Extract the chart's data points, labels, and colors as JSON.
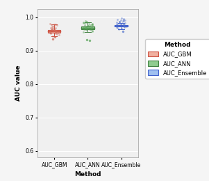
{
  "title": "",
  "xlabel": "Method",
  "ylabel": "AUC value",
  "plot_bg_color": "#f0f0f0",
  "fig_bg_color": "#f5f5f5",
  "grid_color": "#ffffff",
  "ylim": [
    0.58,
    1.025
  ],
  "yticks": [
    0.6,
    0.7,
    0.8,
    0.9,
    1.0
  ],
  "categories": [
    "AUC_GBM",
    "AUC_ANN",
    "AUC_Ensemble"
  ],
  "box_colors": [
    "#f0b0a0",
    "#90cc90",
    "#a0c0f0"
  ],
  "box_edge_colors": [
    "#cc5040",
    "#40904030",
    "#4060cc"
  ],
  "box_edge_colors2": [
    "#cc5040",
    "#408040",
    "#4060cc"
  ],
  "median_colors": [
    "#cc5040",
    "#408040",
    "#4060cc"
  ],
  "jitter_colors": [
    "#cc6050",
    "#50a050",
    "#5070cc"
  ],
  "gbm": {
    "q1": 0.9535,
    "median": 0.959,
    "q3": 0.9625,
    "whisker_low": 0.9445,
    "whisker_high": 0.979,
    "outliers_low": [
      0.9405,
      0.9355
    ],
    "outliers_high": [],
    "jitter_points": [
      0.944,
      0.947,
      0.949,
      0.951,
      0.952,
      0.953,
      0.954,
      0.955,
      0.956,
      0.957,
      0.958,
      0.959,
      0.96,
      0.961,
      0.962,
      0.963,
      0.964,
      0.965,
      0.966,
      0.967,
      0.968,
      0.969,
      0.97,
      0.972,
      0.974,
      0.976,
      0.978,
      0.979,
      0.98,
      0.981
    ]
  },
  "ann": {
    "q1": 0.9655,
    "median": 0.9695,
    "q3": 0.973,
    "whisker_low": 0.9565,
    "whisker_high": 0.9855,
    "outliers_low": [
      0.9305,
      0.9325
    ],
    "outliers_high": [],
    "jitter_points": [
      0.956,
      0.958,
      0.96,
      0.962,
      0.963,
      0.964,
      0.965,
      0.966,
      0.967,
      0.968,
      0.969,
      0.97,
      0.971,
      0.972,
      0.973,
      0.974,
      0.975,
      0.976,
      0.977,
      0.978,
      0.979,
      0.98,
      0.981,
      0.982,
      0.983,
      0.984,
      0.985,
      0.986,
      0.988,
      0.99
    ]
  },
  "ensemble": {
    "q1": 0.972,
    "median": 0.9745,
    "q3": 0.9765,
    "whisker_low": 0.9645,
    "whisker_high": 0.984,
    "outliers_low": [
      0.9585
    ],
    "outliers_high": [],
    "jitter_points": [
      0.964,
      0.966,
      0.968,
      0.97,
      0.971,
      0.972,
      0.973,
      0.974,
      0.975,
      0.976,
      0.977,
      0.978,
      0.979,
      0.98,
      0.981,
      0.982,
      0.983,
      0.984,
      0.985,
      0.986,
      0.987,
      0.988,
      0.989,
      0.99,
      0.991,
      0.992,
      0.993,
      0.994,
      0.995,
      0.997
    ]
  },
  "legend_title": "Method",
  "legend_labels": [
    "AUC_GBM",
    "AUC_ANN",
    "AUC_Ensemble"
  ]
}
